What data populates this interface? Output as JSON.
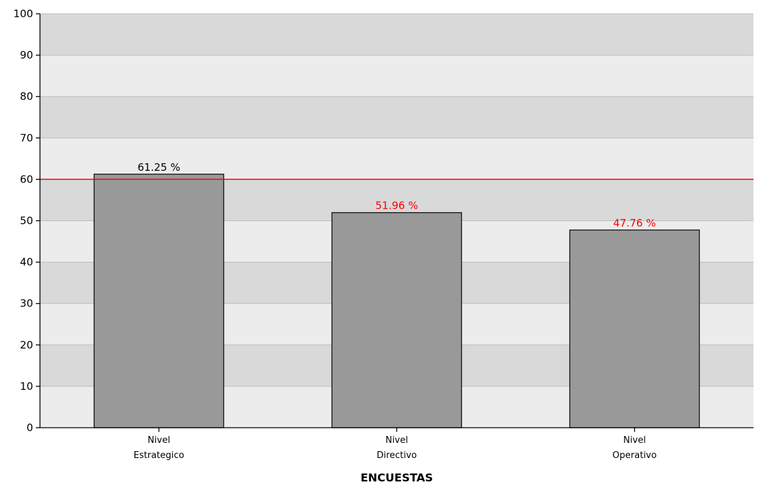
{
  "chart_data": {
    "type": "bar",
    "title": "",
    "xlabel": "ENCUESTAS",
    "ylabel": "",
    "ylim": [
      0,
      100
    ],
    "yticks": [
      0,
      10,
      20,
      30,
      40,
      50,
      60,
      70,
      80,
      90,
      100
    ],
    "categories": [
      "Nivel\nEstrategico",
      "Nivel\nDirectivo",
      "Nivel\nOperativo"
    ],
    "values": [
      61.25,
      51.96,
      47.76
    ],
    "value_labels": [
      "61.25 %",
      "51.96 %",
      "47.76 %"
    ],
    "threshold": 60,
    "grid": true,
    "colors": {
      "bar_fill": "#999999",
      "bar_stroke": "#111111",
      "threshold_line": "#ff0000",
      "label_above_threshold": "#000000",
      "label_below_threshold": "#ff0000",
      "band_dark": "#d9d9d9",
      "band_light": "#ececec",
      "gridline": "#bdbdbd"
    }
  }
}
